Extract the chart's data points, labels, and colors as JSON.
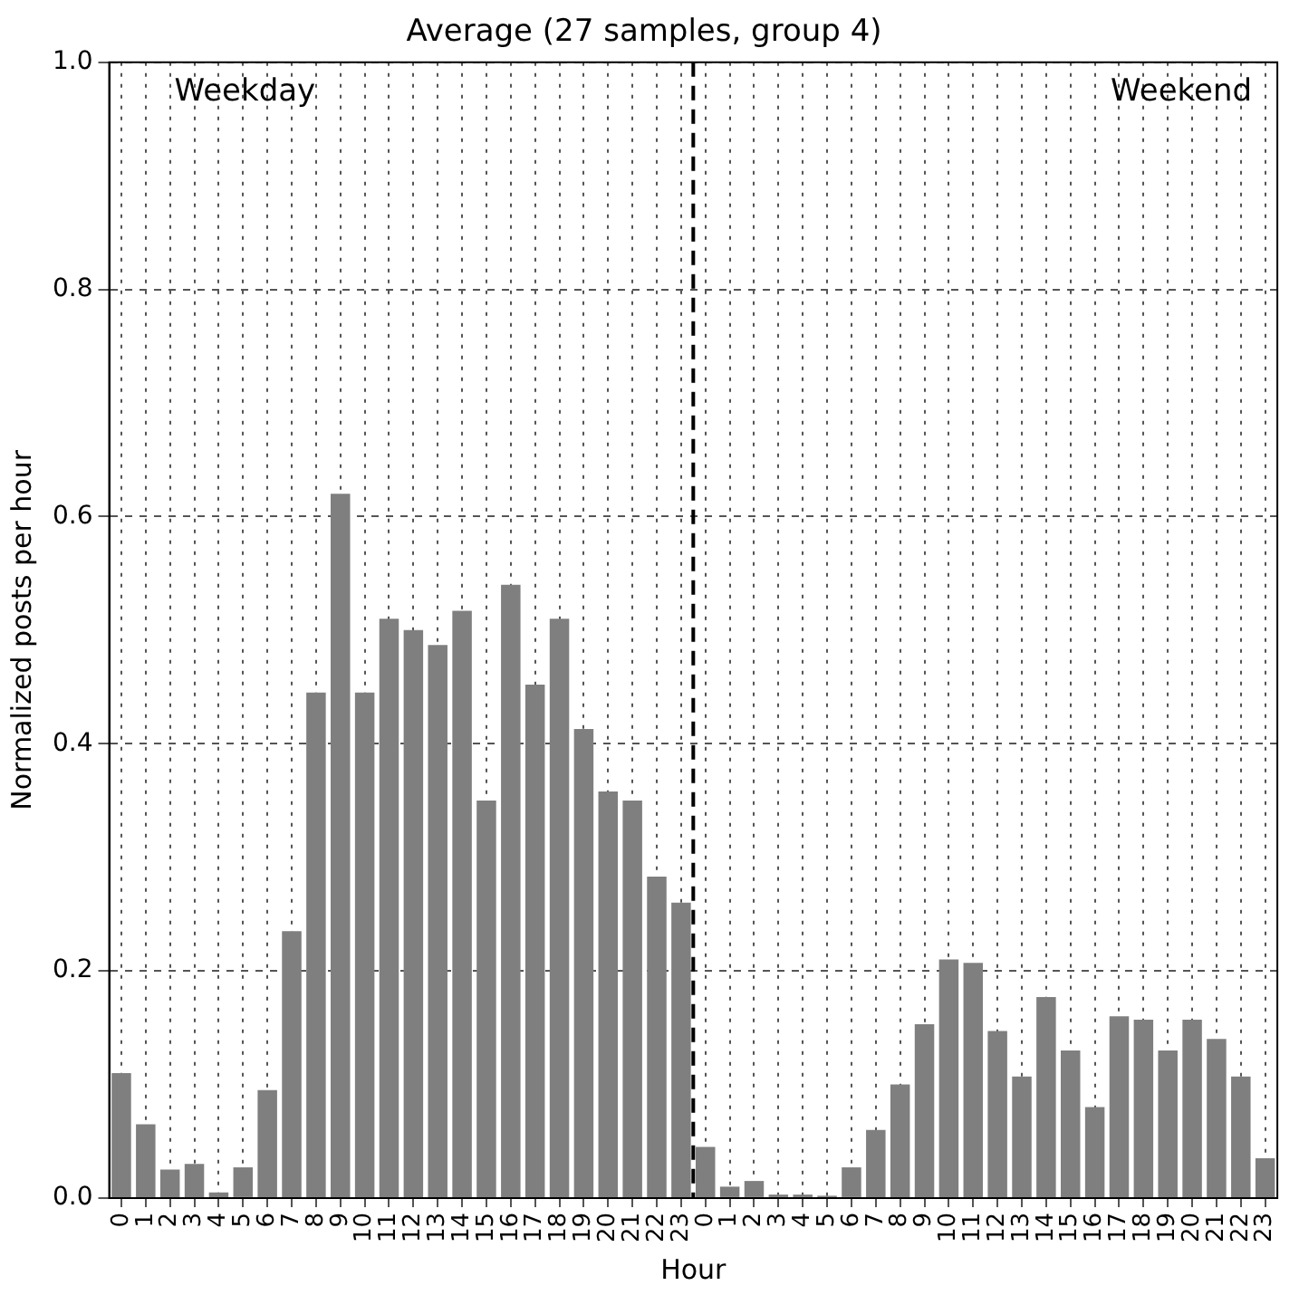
{
  "chart_data": {
    "type": "bar",
    "title": "Average (27 samples, group 4)",
    "xlabel": "Hour",
    "ylabel": "Normalized posts per hour",
    "categories": [
      "0",
      "1",
      "2",
      "3",
      "4",
      "5",
      "6",
      "7",
      "8",
      "9",
      "10",
      "11",
      "12",
      "13",
      "14",
      "15",
      "16",
      "17",
      "18",
      "19",
      "20",
      "21",
      "22",
      "23",
      "0",
      "1",
      "2",
      "3",
      "4",
      "5",
      "6",
      "7",
      "8",
      "9",
      "10",
      "11",
      "12",
      "13",
      "14",
      "15",
      "16",
      "17",
      "18",
      "19",
      "20",
      "21",
      "22",
      "23"
    ],
    "values": [
      0.11,
      0.065,
      0.025,
      0.03,
      0.005,
      0.027,
      0.095,
      0.235,
      0.445,
      0.62,
      0.445,
      0.51,
      0.5,
      0.487,
      0.517,
      0.35,
      0.54,
      0.452,
      0.51,
      0.413,
      0.358,
      0.35,
      0.283,
      0.26,
      0.045,
      0.01,
      0.015,
      0.003,
      0.003,
      0.002,
      0.027,
      0.06,
      0.1,
      0.153,
      0.21,
      0.207,
      0.147,
      0.107,
      0.177,
      0.13,
      0.08,
      0.16,
      0.157,
      0.13,
      0.157,
      0.14,
      0.107,
      0.035
    ],
    "color": "#7f7f7f",
    "ylim": [
      0,
      1
    ],
    "yticks": [
      {
        "value": 0,
        "label": "0.0"
      },
      {
        "value": 0.2,
        "label": "0.2"
      },
      {
        "value": 0.4,
        "label": "0.4"
      },
      {
        "value": 0.6,
        "label": "0.6"
      },
      {
        "value": 0.8,
        "label": "0.8"
      },
      {
        "value": 1,
        "label": "1.0"
      }
    ],
    "ref_lines": [
      {
        "axis": "x",
        "value": "23",
        "color": "#000000",
        "line_style": "dashed"
      }
    ],
    "annotations": [
      "Weekday",
      "Weekend"
    ],
    "grid": true,
    "legend": false
  }
}
